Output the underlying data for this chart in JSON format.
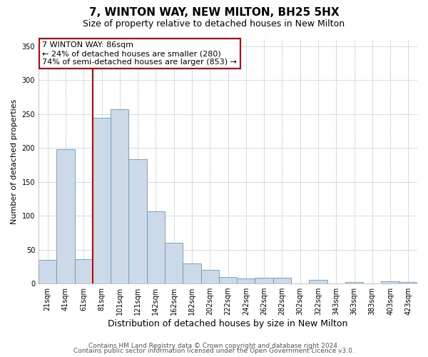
{
  "title": "7, WINTON WAY, NEW MILTON, BH25 5HX",
  "subtitle": "Size of property relative to detached houses in New Milton",
  "xlabel": "Distribution of detached houses by size in New Milton",
  "ylabel": "Number of detached properties",
  "bar_labels": [
    "21sqm",
    "41sqm",
    "61sqm",
    "81sqm",
    "101sqm",
    "121sqm",
    "142sqm",
    "162sqm",
    "182sqm",
    "202sqm",
    "222sqm",
    "242sqm",
    "262sqm",
    "282sqm",
    "302sqm",
    "322sqm",
    "343sqm",
    "363sqm",
    "383sqm",
    "403sqm",
    "423sqm"
  ],
  "bar_values": [
    35,
    198,
    36,
    244,
    257,
    183,
    106,
    60,
    30,
    20,
    10,
    7,
    8,
    8,
    0,
    5,
    0,
    2,
    0,
    3,
    2
  ],
  "bar_color": "#ccd9e8",
  "bar_edge_color": "#6699bb",
  "vline_color": "#cc0000",
  "annotation_box_text": "7 WINTON WAY: 86sqm\n← 24% of detached houses are smaller (280)\n74% of semi-detached houses are larger (853) →",
  "annotation_box_color": "#ffffff",
  "annotation_box_edge_color": "#cc0000",
  "ylim": [
    0,
    360
  ],
  "yticks": [
    0,
    50,
    100,
    150,
    200,
    250,
    300,
    350
  ],
  "footer1": "Contains HM Land Registry data © Crown copyright and database right 2024.",
  "footer2": "Contains public sector information licensed under the Open Government Licence v3.0.",
  "bg_color": "#ffffff",
  "grid_color": "#d0dce8",
  "title_fontsize": 11,
  "subtitle_fontsize": 9,
  "xlabel_fontsize": 9,
  "ylabel_fontsize": 8,
  "tick_fontsize": 7,
  "annotation_fontsize": 8,
  "footer_fontsize": 6.5
}
